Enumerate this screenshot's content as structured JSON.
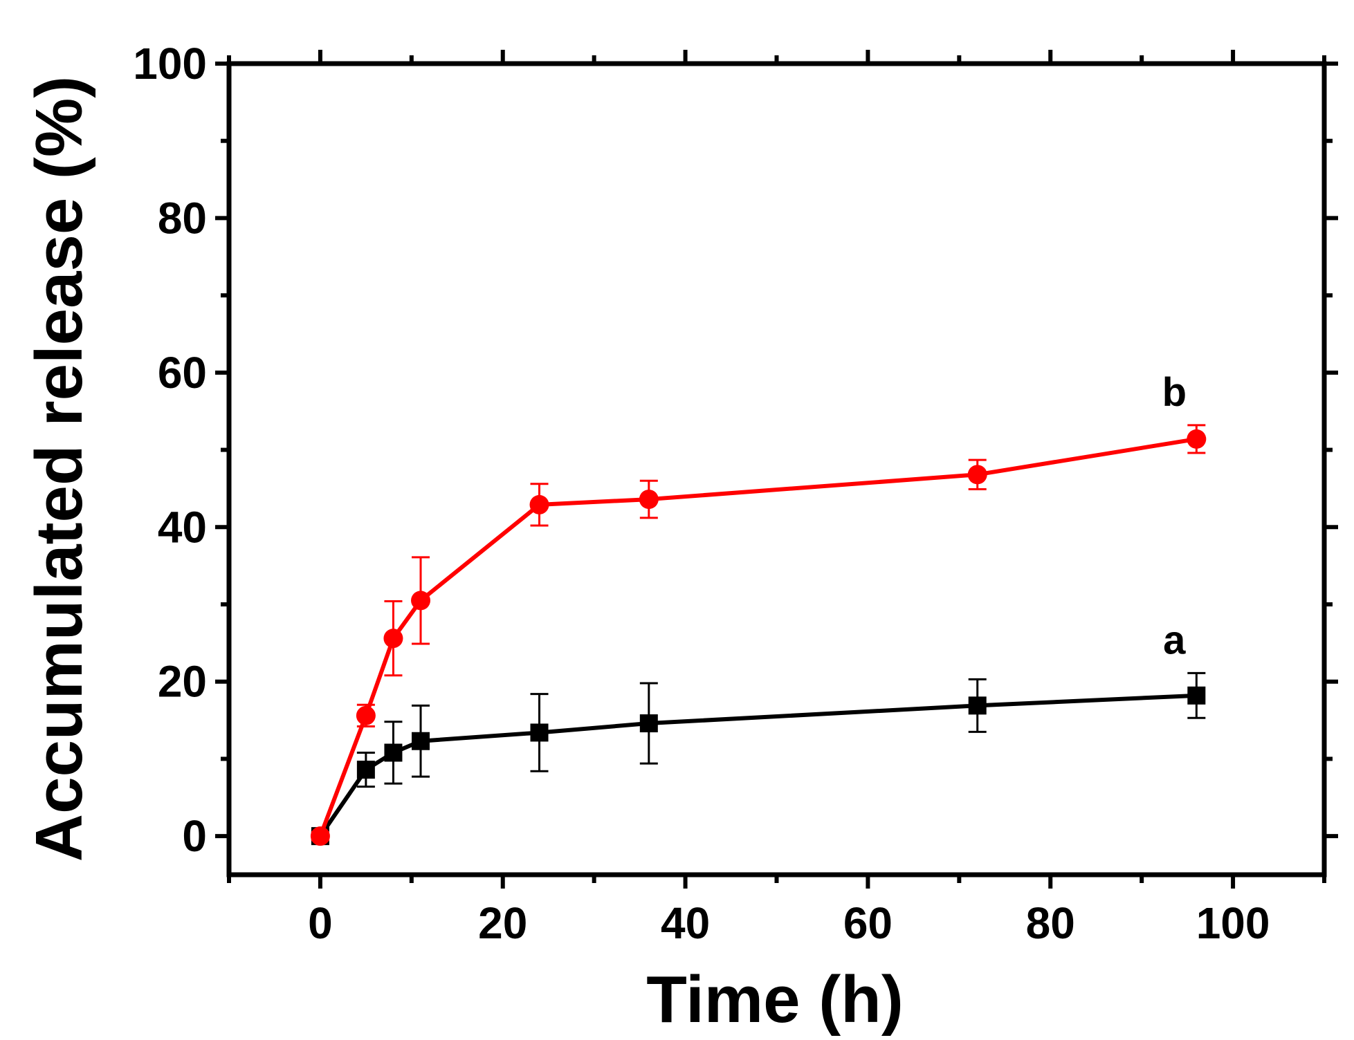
{
  "chart_data": {
    "type": "line",
    "title": "",
    "xlabel": "Time (h)",
    "ylabel": "Accumulated release (%)",
    "xlim": [
      -10,
      110
    ],
    "ylim": [
      -5,
      100
    ],
    "xticks": [
      0,
      20,
      40,
      60,
      80,
      100
    ],
    "yticks": [
      0,
      20,
      40,
      60,
      80,
      100
    ],
    "xtick_labels": [
      "0",
      "20",
      "40",
      "60",
      "80",
      "100"
    ],
    "ytick_labels": [
      "0",
      "20",
      "40",
      "60",
      "80",
      "100"
    ],
    "grid": false,
    "series": [
      {
        "name": "a",
        "color": "#000000",
        "marker": "square",
        "x": [
          0,
          5,
          8,
          11,
          24,
          36,
          72,
          96
        ],
        "y": [
          0,
          8.6,
          10.8,
          12.3,
          13.4,
          14.6,
          16.9,
          18.2
        ],
        "error": [
          0.5,
          2.2,
          4.0,
          4.6,
          5.0,
          5.2,
          3.4,
          2.9
        ]
      },
      {
        "name": "b",
        "color": "#ff0000",
        "marker": "circle",
        "x": [
          0,
          5,
          8,
          11,
          24,
          36,
          72,
          96
        ],
        "y": [
          0,
          15.6,
          25.6,
          30.5,
          42.9,
          43.6,
          46.8,
          51.4
        ],
        "error": [
          0.5,
          1.4,
          4.8,
          5.6,
          2.7,
          2.4,
          1.9,
          1.8
        ]
      }
    ]
  }
}
